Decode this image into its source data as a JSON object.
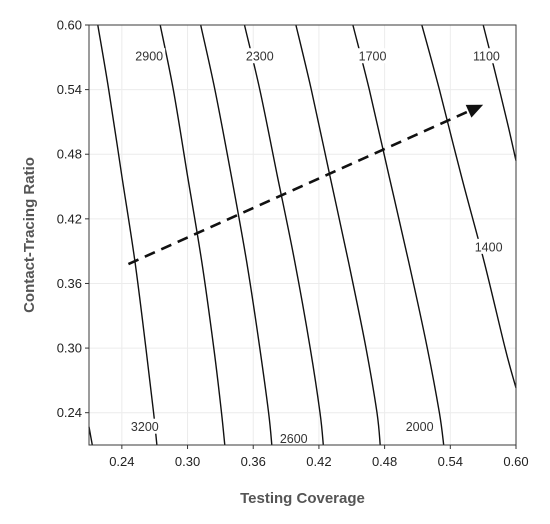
{
  "chart_data": {
    "type": "contour",
    "xlabel": "Testing Coverage",
    "ylabel": "Contact-Tracing Ratio",
    "xlim": [
      0.21,
      0.6
    ],
    "ylim": [
      0.21,
      0.6
    ],
    "x_ticks": [
      "0.24",
      "0.30",
      "0.36",
      "0.42",
      "0.48",
      "0.54",
      "0.60"
    ],
    "y_ticks": [
      "0.24",
      "0.30",
      "0.36",
      "0.42",
      "0.48",
      "0.54",
      "0.60"
    ],
    "grid": true,
    "contours": [
      {
        "level": "3200",
        "points": [
          [
            0.21,
            0.227
          ],
          [
            0.213,
            0.21
          ]
        ]
      },
      {
        "level": "3200",
        "points": [
          [
            0.218,
            0.6
          ],
          [
            0.228,
            0.54
          ],
          [
            0.24,
            0.46
          ],
          [
            0.252,
            0.38
          ],
          [
            0.262,
            0.3
          ],
          [
            0.269,
            0.24
          ],
          [
            0.272,
            0.21
          ]
        ]
      },
      {
        "level": "2900",
        "points": [
          [
            0.275,
            0.6
          ],
          [
            0.287,
            0.54
          ],
          [
            0.3,
            0.46
          ],
          [
            0.313,
            0.38
          ],
          [
            0.324,
            0.3
          ],
          [
            0.331,
            0.24
          ],
          [
            0.334,
            0.21
          ]
        ]
      },
      {
        "level": "2600",
        "points": [
          [
            0.312,
            0.6
          ],
          [
            0.325,
            0.54
          ],
          [
            0.34,
            0.46
          ],
          [
            0.354,
            0.38
          ],
          [
            0.366,
            0.3
          ],
          [
            0.374,
            0.24
          ],
          [
            0.377,
            0.21
          ]
        ]
      },
      {
        "level": "2300",
        "points": [
          [
            0.352,
            0.6
          ],
          [
            0.366,
            0.54
          ],
          [
            0.382,
            0.46
          ],
          [
            0.398,
            0.38
          ],
          [
            0.412,
            0.3
          ],
          [
            0.421,
            0.24
          ],
          [
            0.424,
            0.21
          ]
        ]
      },
      {
        "level": "2000",
        "points": [
          [
            0.399,
            0.6
          ],
          [
            0.413,
            0.54
          ],
          [
            0.43,
            0.46
          ],
          [
            0.447,
            0.38
          ],
          [
            0.463,
            0.3
          ],
          [
            0.473,
            0.24
          ],
          [
            0.476,
            0.21
          ]
        ]
      },
      {
        "level": "1700",
        "points": [
          [
            0.451,
            0.6
          ],
          [
            0.466,
            0.54
          ],
          [
            0.484,
            0.46
          ],
          [
            0.502,
            0.38
          ],
          [
            0.519,
            0.3
          ],
          [
            0.53,
            0.24
          ],
          [
            0.534,
            0.21
          ]
        ]
      },
      {
        "level": "1400",
        "points": [
          [
            0.514,
            0.6
          ],
          [
            0.53,
            0.54
          ],
          [
            0.55,
            0.46
          ],
          [
            0.571,
            0.38
          ],
          [
            0.59,
            0.3
          ],
          [
            0.6,
            0.263
          ]
        ]
      },
      {
        "level": "1100",
        "points": [
          [
            0.57,
            0.6
          ],
          [
            0.58,
            0.56
          ],
          [
            0.592,
            0.51
          ],
          [
            0.6,
            0.474
          ]
        ]
      }
    ],
    "contour_labels": [
      {
        "text": "2900",
        "x": 0.265,
        "y": 0.571
      },
      {
        "text": "2300",
        "x": 0.366,
        "y": 0.571
      },
      {
        "text": "1700",
        "x": 0.469,
        "y": 0.571
      },
      {
        "text": "1100",
        "x": 0.573,
        "y": 0.571
      },
      {
        "text": "1400",
        "x": 0.575,
        "y": 0.394
      },
      {
        "text": "3200",
        "x": 0.261,
        "y": 0.227
      },
      {
        "text": "2600",
        "x": 0.397,
        "y": 0.216
      },
      {
        "text": "2000",
        "x": 0.512,
        "y": 0.227
      }
    ],
    "arrow": {
      "from": [
        0.246,
        0.378
      ],
      "to": [
        0.57,
        0.526
      ],
      "style": "dashed"
    }
  }
}
